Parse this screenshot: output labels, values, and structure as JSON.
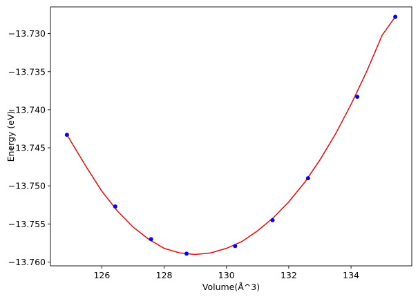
{
  "chart_data": {
    "type": "scatter",
    "xlabel": "Volume(Å^3)",
    "ylabel": "Energy (eV)",
    "xlim": [
      124.35,
      135.95
    ],
    "ylim": [
      -13.7605,
      -13.7265
    ],
    "x_ticks": [
      126,
      128,
      130,
      132,
      134
    ],
    "y_ticks": [
      -13.73,
      -13.735,
      -13.74,
      -13.745,
      -13.75,
      -13.755,
      -13.76
    ],
    "grid": false,
    "series": [
      {
        "kind": "points",
        "color": "#0000ff",
        "x": [
          124.88,
          126.43,
          127.58,
          128.72,
          130.28,
          131.48,
          132.62,
          134.2,
          135.42
        ],
        "y": [
          -13.7433,
          -13.7527,
          -13.757,
          -13.7589,
          -13.7579,
          -13.7545,
          -13.749,
          -13.7383,
          -13.7278
        ]
      },
      {
        "kind": "fit-curve",
        "color": "#ff0000",
        "x": [
          124.88,
          125.5,
          126.0,
          126.5,
          127.0,
          127.5,
          128.0,
          128.5,
          129.0,
          129.5,
          130.0,
          130.5,
          131.0,
          131.5,
          132.0,
          132.5,
          133.0,
          133.5,
          134.0,
          134.5,
          135.0,
          135.42
        ],
        "y": [
          -13.7433,
          -13.7475,
          -13.7507,
          -13.7533,
          -13.7554,
          -13.757,
          -13.7582,
          -13.7588,
          -13.759,
          -13.7588,
          -13.7582,
          -13.7573,
          -13.7559,
          -13.7542,
          -13.7521,
          -13.7496,
          -13.7466,
          -13.7432,
          -13.7393,
          -13.735,
          -13.7302,
          -13.7278
        ]
      }
    ]
  }
}
